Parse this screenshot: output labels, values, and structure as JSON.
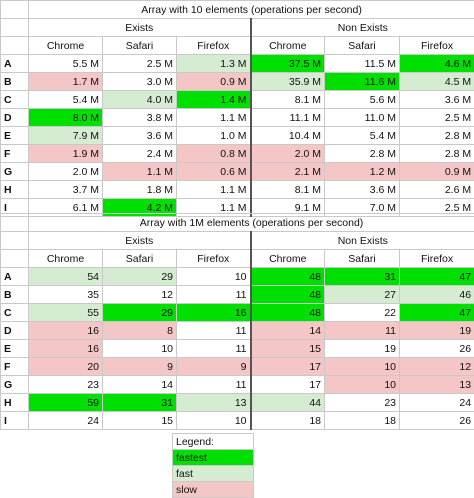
{
  "table1": {
    "title": "Array with 10 elements (operations per second)",
    "groups": [
      "Exists",
      "Non Exists"
    ],
    "columns": [
      "Chrome",
      "Safari",
      "Firefox",
      "Chrome",
      "Safari",
      "Firefox"
    ],
    "rows": [
      {
        "label": "A",
        "cells": [
          {
            "v": "5.5 M",
            "c": ""
          },
          {
            "v": "2.5 M",
            "c": ""
          },
          {
            "v": "1.3 M",
            "c": "fast"
          },
          {
            "v": "37.5 M",
            "c": "fastest"
          },
          {
            "v": "11.5 M",
            "c": ""
          },
          {
            "v": "4.6 M",
            "c": "fastest"
          }
        ]
      },
      {
        "label": "B",
        "cells": [
          {
            "v": "1.7 M",
            "c": "slow"
          },
          {
            "v": "3.0 M",
            "c": ""
          },
          {
            "v": "0.9 M",
            "c": "slow"
          },
          {
            "v": "35.9 M",
            "c": "fast"
          },
          {
            "v": "11.6 M",
            "c": "fastest"
          },
          {
            "v": "4.5 M",
            "c": "fast"
          }
        ]
      },
      {
        "label": "C",
        "cells": [
          {
            "v": "5.4 M",
            "c": ""
          },
          {
            "v": "4.0 M",
            "c": "fast"
          },
          {
            "v": "1.4 M",
            "c": "fastest"
          },
          {
            "v": "8.1 M",
            "c": ""
          },
          {
            "v": "5.6 M",
            "c": ""
          },
          {
            "v": "3.6 M",
            "c": ""
          }
        ]
      },
      {
        "label": "D",
        "cells": [
          {
            "v": "8.0 M",
            "c": "fastest"
          },
          {
            "v": "3.8 M",
            "c": ""
          },
          {
            "v": "1.1 M",
            "c": ""
          },
          {
            "v": "11.1 M",
            "c": ""
          },
          {
            "v": "11.0 M",
            "c": ""
          },
          {
            "v": "2.5 M",
            "c": ""
          }
        ]
      },
      {
        "label": "E",
        "cells": [
          {
            "v": "7.9 M",
            "c": "fast"
          },
          {
            "v": "3.6 M",
            "c": ""
          },
          {
            "v": "1.0 M",
            "c": ""
          },
          {
            "v": "10.4 M",
            "c": ""
          },
          {
            "v": "5.4 M",
            "c": ""
          },
          {
            "v": "2.8 M",
            "c": ""
          }
        ]
      },
      {
        "label": "F",
        "cells": [
          {
            "v": "1.9 M",
            "c": "slow"
          },
          {
            "v": "2.4 M",
            "c": ""
          },
          {
            "v": "0.8 M",
            "c": "slow"
          },
          {
            "v": "2.0 M",
            "c": "slow"
          },
          {
            "v": "2.8 M",
            "c": ""
          },
          {
            "v": "2.8 M",
            "c": ""
          }
        ]
      },
      {
        "label": "G",
        "cells": [
          {
            "v": "2.0 M",
            "c": ""
          },
          {
            "v": "1.1 M",
            "c": "slow"
          },
          {
            "v": "0.6 M",
            "c": "slow"
          },
          {
            "v": "2.1 M",
            "c": "slow"
          },
          {
            "v": "1.2 M",
            "c": "slow"
          },
          {
            "v": "0.9 M",
            "c": "slow"
          }
        ]
      },
      {
        "label": "H",
        "cells": [
          {
            "v": "3.7 M",
            "c": ""
          },
          {
            "v": "1.8 M",
            "c": ""
          },
          {
            "v": "1.1 M",
            "c": ""
          },
          {
            "v": "8.1 M",
            "c": ""
          },
          {
            "v": "3.6 M",
            "c": ""
          },
          {
            "v": "2.6 M",
            "c": ""
          }
        ]
      },
      {
        "label": "I",
        "cells": [
          {
            "v": "6.1 M",
            "c": ""
          },
          {
            "v": "4.2 M",
            "c": "fastest"
          },
          {
            "v": "1.1 M",
            "c": ""
          },
          {
            "v": "9.1 M",
            "c": ""
          },
          {
            "v": "7.0 M",
            "c": ""
          },
          {
            "v": "2.5 M",
            "c": ""
          }
        ]
      }
    ]
  },
  "table2": {
    "title": "Array with 1M elements (operations per second)",
    "groups": [
      "Exists",
      "Non Exists"
    ],
    "columns": [
      "Chrome",
      "Safari",
      "Firefox",
      "Chrome",
      "Safari",
      "Firefox"
    ],
    "rows": [
      {
        "label": "A",
        "cells": [
          {
            "v": "54",
            "c": "fast"
          },
          {
            "v": "29",
            "c": "fast"
          },
          {
            "v": "10",
            "c": ""
          },
          {
            "v": "48",
            "c": "fastest"
          },
          {
            "v": "31",
            "c": "fastest"
          },
          {
            "v": "47",
            "c": "fastest"
          }
        ]
      },
      {
        "label": "B",
        "cells": [
          {
            "v": "35",
            "c": ""
          },
          {
            "v": "12",
            "c": ""
          },
          {
            "v": "11",
            "c": ""
          },
          {
            "v": "48",
            "c": "fastest"
          },
          {
            "v": "27",
            "c": "fast"
          },
          {
            "v": "46",
            "c": "fast"
          }
        ]
      },
      {
        "label": "C",
        "cells": [
          {
            "v": "55",
            "c": "fast"
          },
          {
            "v": "29",
            "c": "fastest"
          },
          {
            "v": "16",
            "c": "fastest"
          },
          {
            "v": "48",
            "c": "fastest"
          },
          {
            "v": "22",
            "c": ""
          },
          {
            "v": "47",
            "c": "fastest"
          }
        ]
      },
      {
        "label": "D",
        "cells": [
          {
            "v": "16",
            "c": "slow"
          },
          {
            "v": "8",
            "c": "slow"
          },
          {
            "v": "11",
            "c": ""
          },
          {
            "v": "14",
            "c": "slow"
          },
          {
            "v": "11",
            "c": "slow"
          },
          {
            "v": "19",
            "c": "slow"
          }
        ]
      },
      {
        "label": "E",
        "cells": [
          {
            "v": "16",
            "c": "slow"
          },
          {
            "v": "10",
            "c": ""
          },
          {
            "v": "11",
            "c": ""
          },
          {
            "v": "15",
            "c": "slow"
          },
          {
            "v": "19",
            "c": ""
          },
          {
            "v": "26",
            "c": ""
          }
        ]
      },
      {
        "label": "F",
        "cells": [
          {
            "v": "20",
            "c": "slow"
          },
          {
            "v": "9",
            "c": "slow"
          },
          {
            "v": "9",
            "c": "slow"
          },
          {
            "v": "17",
            "c": "slow"
          },
          {
            "v": "10",
            "c": "slow"
          },
          {
            "v": "12",
            "c": "slow"
          }
        ]
      },
      {
        "label": "G",
        "cells": [
          {
            "v": "23",
            "c": ""
          },
          {
            "v": "14",
            "c": ""
          },
          {
            "v": "11",
            "c": ""
          },
          {
            "v": "17",
            "c": ""
          },
          {
            "v": "10",
            "c": "slow"
          },
          {
            "v": "13",
            "c": "slow"
          }
        ]
      },
      {
        "label": "H",
        "cells": [
          {
            "v": "59",
            "c": "fastest"
          },
          {
            "v": "31",
            "c": "fastest"
          },
          {
            "v": "13",
            "c": "fast"
          },
          {
            "v": "44",
            "c": "fast"
          },
          {
            "v": "23",
            "c": ""
          },
          {
            "v": "24",
            "c": ""
          }
        ]
      },
      {
        "label": "I",
        "cells": [
          {
            "v": "24",
            "c": ""
          },
          {
            "v": "15",
            "c": ""
          },
          {
            "v": "10",
            "c": ""
          },
          {
            "v": "18",
            "c": ""
          },
          {
            "v": "18",
            "c": ""
          },
          {
            "v": "26",
            "c": ""
          }
        ]
      }
    ]
  },
  "legend": {
    "title": "Legend:",
    "items": [
      {
        "label": "fastest",
        "c": "fastest"
      },
      {
        "label": "fast",
        "c": "fast"
      },
      {
        "label": "slow",
        "c": "slow"
      }
    ]
  },
  "colors": {
    "fastest": "#00e000",
    "fast": "#d5ecd2",
    "slow": "#f4c6c6",
    "separator": "#555555",
    "gridline": "#c9c9c9"
  }
}
